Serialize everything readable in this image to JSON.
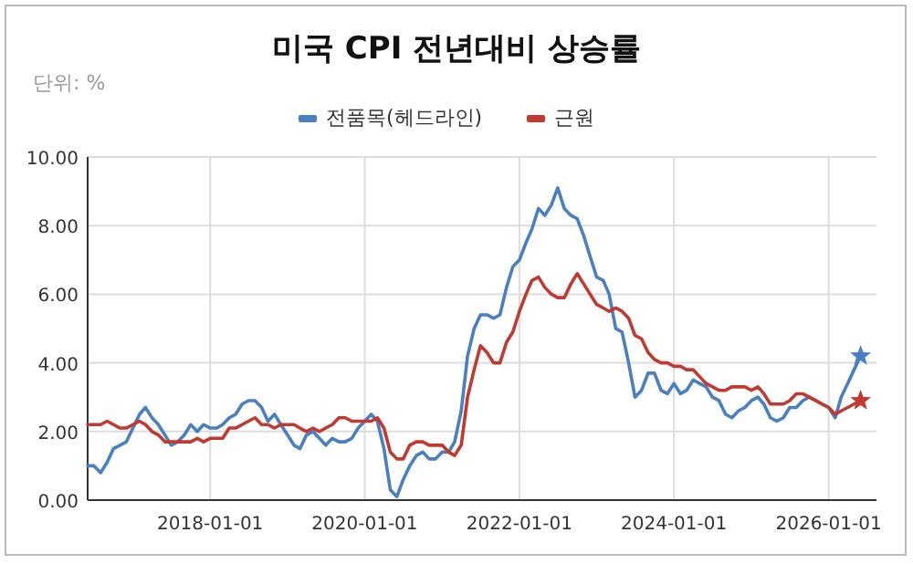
{
  "chart_data": {
    "type": "line",
    "title": "미국 CPI 전년대비 상승률",
    "subtitle": "단위: %",
    "legend": "top",
    "grid": true,
    "marker": "none",
    "xlim": [
      "2016-06-01",
      "2026-08-15"
    ],
    "xticks": [
      "2018-01-01",
      "2020-01-01",
      "2022-01-01",
      "2024-01-01",
      "2026-01-01"
    ],
    "ylim": [
      0,
      10
    ],
    "yticks": [
      {
        "value": 0,
        "label": "0.00"
      },
      {
        "value": 2,
        "label": "2.00"
      },
      {
        "value": 4,
        "label": "4.00"
      },
      {
        "value": 6,
        "label": "6.00"
      },
      {
        "value": 8,
        "label": "8.00"
      },
      {
        "value": 10,
        "label": "10.00"
      }
    ],
    "x": [
      "2016-06",
      "2016-07",
      "2016-08",
      "2016-09",
      "2016-10",
      "2016-11",
      "2016-12",
      "2017-01",
      "2017-02",
      "2017-03",
      "2017-04",
      "2017-05",
      "2017-06",
      "2017-07",
      "2017-08",
      "2017-09",
      "2017-10",
      "2017-11",
      "2017-12",
      "2018-01",
      "2018-02",
      "2018-03",
      "2018-04",
      "2018-05",
      "2018-06",
      "2018-07",
      "2018-08",
      "2018-09",
      "2018-10",
      "2018-11",
      "2018-12",
      "2019-01",
      "2019-02",
      "2019-03",
      "2019-04",
      "2019-05",
      "2019-06",
      "2019-07",
      "2019-08",
      "2019-09",
      "2019-10",
      "2019-11",
      "2019-12",
      "2020-01",
      "2020-02",
      "2020-03",
      "2020-04",
      "2020-05",
      "2020-06",
      "2020-07",
      "2020-08",
      "2020-09",
      "2020-10",
      "2020-11",
      "2020-12",
      "2021-01",
      "2021-02",
      "2021-03",
      "2021-04",
      "2021-05",
      "2021-06",
      "2021-07",
      "2021-08",
      "2021-09",
      "2021-10",
      "2021-11",
      "2021-12",
      "2022-01",
      "2022-02",
      "2022-03",
      "2022-04",
      "2022-05",
      "2022-06",
      "2022-07",
      "2022-08",
      "2022-09",
      "2022-10",
      "2022-11",
      "2022-12",
      "2023-01",
      "2023-02",
      "2023-03",
      "2023-04",
      "2023-05",
      "2023-06",
      "2023-07",
      "2023-08",
      "2023-09",
      "2023-10",
      "2023-11",
      "2023-12",
      "2024-01",
      "2024-02",
      "2024-03",
      "2024-04",
      "2024-05",
      "2024-06",
      "2024-07",
      "2024-08",
      "2024-09",
      "2024-10",
      "2024-11",
      "2024-12",
      "2025-01",
      "2025-02",
      "2025-03",
      "2025-04",
      "2025-05",
      "2025-06",
      "2025-07",
      "2025-08",
      "2025-09",
      "2025-10",
      "2025-11",
      "2025-12",
      "2026-01",
      "2026-02",
      "2026-03",
      "2026-04",
      "2026-05",
      "2026-06"
    ],
    "series": [
      {
        "name": "전품목(헤드라인)",
        "color": "#4a7fc1",
        "values": [
          1.0,
          1.0,
          0.8,
          1.1,
          1.5,
          1.6,
          1.7,
          2.1,
          2.5,
          2.7,
          2.4,
          2.2,
          1.9,
          1.6,
          1.7,
          1.9,
          2.2,
          2.0,
          2.2,
          2.1,
          2.1,
          2.2,
          2.4,
          2.5,
          2.8,
          2.9,
          2.9,
          2.7,
          2.3,
          2.5,
          2.2,
          1.9,
          1.6,
          1.5,
          1.9,
          2.0,
          1.8,
          1.6,
          1.8,
          1.7,
          1.7,
          1.8,
          2.1,
          2.3,
          2.5,
          2.3,
          1.5,
          0.3,
          0.1,
          0.6,
          1.0,
          1.3,
          1.4,
          1.2,
          1.2,
          1.4,
          1.4,
          1.7,
          2.6,
          4.2,
          5.0,
          5.4,
          5.4,
          5.3,
          5.4,
          6.2,
          6.8,
          7.0,
          7.5,
          7.9,
          8.5,
          8.3,
          8.6,
          9.1,
          8.5,
          8.3,
          8.2,
          7.7,
          7.1,
          6.5,
          6.4,
          6.0,
          5.0,
          4.9,
          4.0,
          3.0,
          3.2,
          3.7,
          3.7,
          3.2,
          3.1,
          3.4,
          3.1,
          3.2,
          3.5,
          3.4,
          3.3,
          3.0,
          2.9,
          2.5,
          2.4,
          2.6,
          2.7,
          2.9,
          3.0,
          2.8,
          2.4,
          2.3,
          2.4,
          2.7,
          2.7,
          2.9,
          3.0,
          2.9,
          2.8,
          2.7,
          2.4,
          3.0,
          3.4,
          3.8,
          4.2
        ]
      },
      {
        "name": "근원",
        "color": "#c2392f",
        "values": [
          2.2,
          2.2,
          2.2,
          2.3,
          2.2,
          2.1,
          2.1,
          2.2,
          2.3,
          2.2,
          2.0,
          1.9,
          1.7,
          1.7,
          1.7,
          1.7,
          1.7,
          1.8,
          1.7,
          1.8,
          1.8,
          1.8,
          2.1,
          2.1,
          2.2,
          2.3,
          2.4,
          2.2,
          2.2,
          2.1,
          2.2,
          2.2,
          2.2,
          2.1,
          2.0,
          2.1,
          2.0,
          2.1,
          2.2,
          2.4,
          2.4,
          2.3,
          2.3,
          2.3,
          2.3,
          2.4,
          2.1,
          1.4,
          1.2,
          1.2,
          1.6,
          1.7,
          1.7,
          1.6,
          1.6,
          1.6,
          1.4,
          1.3,
          1.6,
          3.0,
          3.8,
          4.5,
          4.3,
          4.0,
          4.0,
          4.6,
          4.9,
          5.5,
          6.0,
          6.4,
          6.5,
          6.2,
          6.0,
          5.9,
          5.9,
          6.3,
          6.6,
          6.3,
          6.0,
          5.7,
          5.6,
          5.5,
          5.6,
          5.5,
          5.3,
          4.8,
          4.7,
          4.3,
          4.1,
          4.0,
          4.0,
          3.9,
          3.9,
          3.8,
          3.8,
          3.6,
          3.4,
          3.3,
          3.2,
          3.2,
          3.3,
          3.3,
          3.3,
          3.2,
          3.3,
          3.1,
          2.8,
          2.8,
          2.8,
          2.9,
          3.1,
          3.1,
          3.0,
          2.9,
          2.8,
          2.7,
          2.5,
          2.6,
          2.7,
          2.8,
          2.9
        ]
      },
      {
        "type": "scatter",
        "marker": "star",
        "color": "#4a7fc1",
        "x": [
          "2026-06"
        ],
        "values": [
          4.2
        ]
      },
      {
        "type": "scatter",
        "marker": "star",
        "color": "#c2392f",
        "x": [
          "2026-06"
        ],
        "values": [
          2.9
        ]
      }
    ]
  }
}
